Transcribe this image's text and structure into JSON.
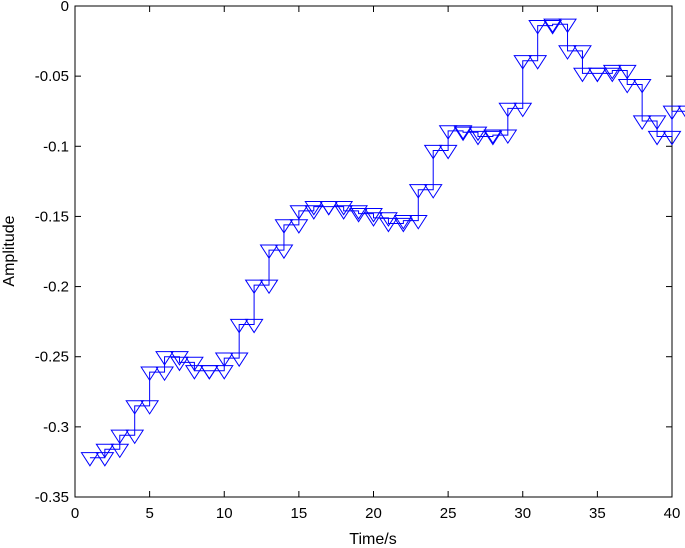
{
  "chart_data": {
    "type": "line",
    "title": "",
    "xlabel": "Time/s",
    "ylabel": "Amplitude",
    "xlim": [
      0,
      40
    ],
    "ylim": [
      -0.35,
      0
    ],
    "xticks": [
      0,
      5,
      10,
      15,
      20,
      25,
      30,
      35,
      40
    ],
    "xtick_labels": [
      "0",
      "5",
      "10",
      "15",
      "20",
      "25",
      "30",
      "35",
      "40"
    ],
    "yticks": [
      0,
      -0.05,
      -0.1,
      -0.15,
      -0.2,
      -0.25,
      -0.3,
      -0.35
    ],
    "ytick_labels": [
      "0",
      "-0.05",
      "-0.1",
      "-0.15",
      "-0.2",
      "-0.25",
      "-0.3",
      "-0.35"
    ],
    "grid": false,
    "legend": "none",
    "line_style": "stairs",
    "marker": "triangle-down",
    "color": "#0000ff",
    "series": [
      {
        "x": [
          1,
          2,
          3,
          4,
          5,
          6,
          7,
          8,
          9,
          10,
          11,
          12,
          13,
          14,
          15,
          16,
          17,
          18,
          19,
          20,
          21,
          22,
          23,
          24,
          25,
          26,
          27,
          28,
          29,
          30,
          31,
          32,
          33,
          34,
          35,
          36,
          37,
          38,
          39,
          40
        ],
        "values": [
          -0.322,
          -0.316,
          -0.306,
          -0.285,
          -0.261,
          -0.25,
          -0.254,
          -0.26,
          -0.26,
          -0.251,
          -0.227,
          -0.199,
          -0.174,
          -0.156,
          -0.146,
          -0.143,
          -0.143,
          -0.146,
          -0.148,
          -0.151,
          -0.155,
          -0.153,
          -0.131,
          -0.103,
          -0.089,
          -0.09,
          -0.093,
          -0.092,
          -0.073,
          -0.039,
          -0.014,
          -0.013,
          -0.032,
          -0.048,
          -0.048,
          -0.046,
          -0.056,
          -0.082,
          -0.093,
          -0.075
        ]
      }
    ]
  }
}
